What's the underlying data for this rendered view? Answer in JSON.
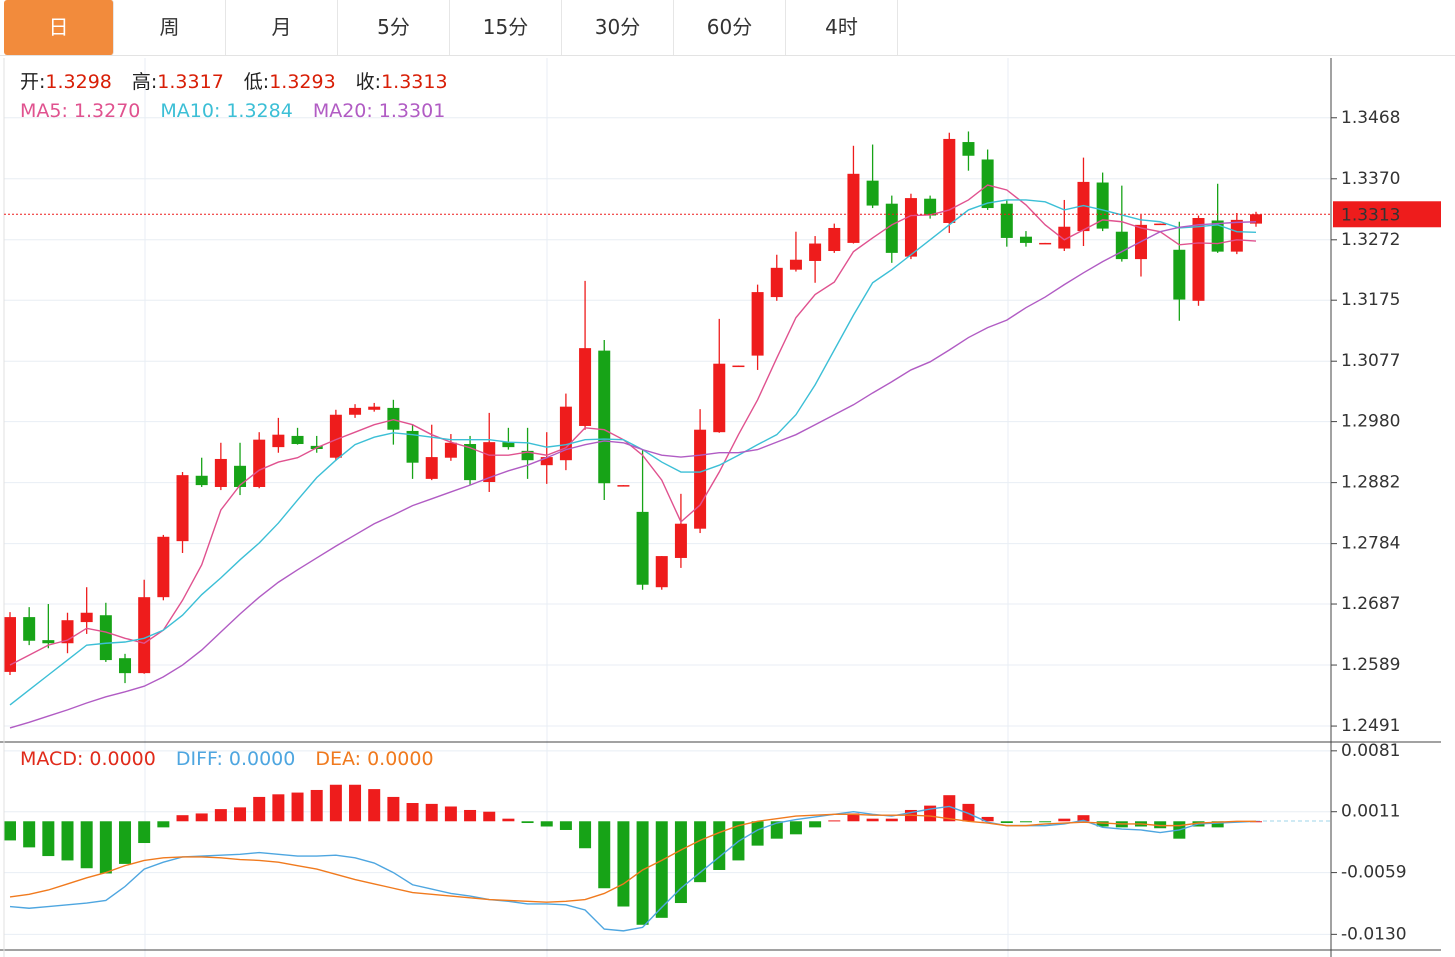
{
  "tabs": {
    "items": [
      "日",
      "周",
      "月",
      "5分",
      "15分",
      "30分",
      "60分",
      "4时"
    ],
    "active": 0,
    "active_color": "#f28b3c"
  },
  "chart_data": [
    {
      "type": "candlestick",
      "info": [
        {
          "label": "开:",
          "value": "1.3298"
        },
        {
          "label": "高:",
          "value": "1.3317"
        },
        {
          "label": "低:",
          "value": "1.3293"
        },
        {
          "label": "收:",
          "value": "1.3313"
        }
      ],
      "info_color": "#d81e06",
      "up_color": "#ee1c1c",
      "down_color": "#17a317",
      "open": [
        1.2578,
        1.2666,
        1.2629,
        1.2624,
        1.2658,
        1.2669,
        1.26,
        1.2576,
        1.2698,
        1.2788,
        1.2893,
        1.2875,
        1.2909,
        1.2875,
        1.2939,
        1.2957,
        1.2941,
        1.2922,
        1.2991,
        1.2999,
        1.3002,
        1.2965,
        1.2888,
        1.2922,
        1.2944,
        1.2883,
        1.2947,
        1.2933,
        1.291,
        1.2918,
        1.2973,
        1.3094,
        1.2877,
        1.2835,
        1.2714,
        1.2761,
        1.2808,
        1.2963,
        1.3068,
        1.3086,
        1.318,
        1.3224,
        1.3238,
        1.3254,
        1.3267,
        1.3367,
        1.333,
        1.3245,
        1.3338,
        1.3299,
        1.3429,
        1.3401,
        1.333,
        1.3277,
        1.3266,
        1.3258,
        1.3286,
        1.3364,
        1.3285,
        1.3241,
        1.3297,
        1.3256,
        1.3174,
        1.3303,
        1.3253,
        1.3298
      ],
      "high": [
        1.2674,
        1.2682,
        1.2687,
        1.2673,
        1.2714,
        1.2689,
        1.2607,
        1.2726,
        1.2798,
        1.2899,
        1.2922,
        1.2946,
        1.2946,
        1.2963,
        1.2986,
        1.297,
        1.2957,
        1.2999,
        1.3008,
        1.301,
        1.3015,
        1.2976,
        1.2975,
        1.296,
        1.2957,
        1.2994,
        1.297,
        1.297,
        1.2963,
        1.3025,
        1.3206,
        1.3111,
        1.2878,
        1.2935,
        1.2764,
        1.2864,
        1.3,
        1.3145,
        1.307,
        1.32,
        1.3248,
        1.3285,
        1.3278,
        1.3298,
        1.3423,
        1.3425,
        1.3343,
        1.3346,
        1.3343,
        1.3444,
        1.3446,
        1.3417,
        1.3335,
        1.3286,
        1.3267,
        1.3336,
        1.3404,
        1.338,
        1.3359,
        1.3312,
        1.3298,
        1.3301,
        1.3311,
        1.3362,
        1.3315,
        1.3317
      ],
      "low": [
        1.2573,
        1.2621,
        1.2616,
        1.2608,
        1.2639,
        1.2594,
        1.256,
        1.2575,
        1.2693,
        1.2769,
        1.2875,
        1.287,
        1.2862,
        1.2873,
        1.293,
        1.2943,
        1.293,
        1.2917,
        1.2986,
        1.2996,
        1.2943,
        1.2888,
        1.2886,
        1.2917,
        1.2878,
        1.2867,
        1.2935,
        1.2888,
        1.288,
        1.2902,
        1.2967,
        1.2854,
        1.2877,
        1.271,
        1.271,
        1.2745,
        1.2801,
        1.2962,
        1.3068,
        1.3063,
        1.3174,
        1.3221,
        1.3203,
        1.3251,
        1.3266,
        1.3323,
        1.3235,
        1.3241,
        1.3306,
        1.3283,
        1.3383,
        1.332,
        1.3261,
        1.3261,
        1.3266,
        1.3254,
        1.3262,
        1.3286,
        1.3237,
        1.3213,
        1.3297,
        1.3142,
        1.3166,
        1.3251,
        1.3249,
        1.3293
      ],
      "close": [
        1.2666,
        1.2628,
        1.2624,
        1.2661,
        1.2673,
        1.2597,
        1.2576,
        1.2698,
        1.2795,
        1.2894,
        1.2878,
        1.292,
        1.2875,
        1.2951,
        1.2959,
        1.2944,
        1.2936,
        1.2991,
        1.3002,
        1.3004,
        1.2967,
        1.2914,
        1.2923,
        1.2946,
        1.2886,
        1.2947,
        1.2939,
        1.2918,
        1.2923,
        1.3004,
        1.3098,
        1.2881,
        1.2878,
        1.2718,
        1.2764,
        1.2816,
        1.2967,
        1.3073,
        1.307,
        1.3188,
        1.3227,
        1.324,
        1.3266,
        1.3291,
        1.3378,
        1.3327,
        1.3251,
        1.3339,
        1.3311,
        1.3434,
        1.3407,
        1.3323,
        1.3275,
        1.3267,
        1.3267,
        1.3293,
        1.3365,
        1.329,
        1.3241,
        1.3296,
        1.3298,
        1.3176,
        1.3307,
        1.3253,
        1.3304,
        1.3313
      ],
      "series": [
        {
          "name": "MA5:",
          "value_label": "1.3270",
          "color": "#e0528f",
          "values": [
            1.2589,
            1.2605,
            1.2621,
            1.2629,
            1.2648,
            1.2642,
            1.2632,
            1.2624,
            1.2645,
            1.2693,
            1.275,
            1.2838,
            1.2878,
            1.2902,
            1.2915,
            1.2922,
            1.2938,
            1.2951,
            1.2963,
            1.2975,
            1.2983,
            1.2975,
            1.2959,
            1.2947,
            1.2938,
            1.2926,
            1.2926,
            1.2931,
            1.2926,
            1.2938,
            1.297,
            1.2967,
            1.2951,
            1.2926,
            1.2886,
            1.2819,
            1.2846,
            1.2899,
            1.2959,
            1.3015,
            1.3082,
            1.3147,
            1.3184,
            1.3204,
            1.3253,
            1.3275,
            1.3296,
            1.3311,
            1.3312,
            1.332,
            1.3336,
            1.336,
            1.3352,
            1.3328,
            1.3296,
            1.3272,
            1.3288,
            1.3304,
            1.3301,
            1.3291,
            1.3285,
            1.3264,
            1.3267,
            1.3266,
            1.3272,
            1.327
          ]
        },
        {
          "name": "MA10:",
          "value_label": "1.3284",
          "color": "#3cbfd6",
          "values": [
            1.2525,
            1.2549,
            1.2573,
            1.2597,
            1.2621,
            1.2624,
            1.2626,
            1.2632,
            1.2645,
            1.2669,
            1.2702,
            1.2729,
            1.2758,
            1.2785,
            1.2817,
            1.2854,
            1.289,
            1.2918,
            1.2943,
            1.2955,
            1.2962,
            1.2959,
            1.2955,
            1.2951,
            1.2951,
            1.2951,
            1.2947,
            1.2946,
            1.2939,
            1.2943,
            1.2951,
            1.2952,
            1.2951,
            1.2935,
            1.2915,
            1.2899,
            1.2899,
            1.291,
            1.2926,
            1.2943,
            1.2959,
            1.2991,
            1.3039,
            1.3095,
            1.3151,
            1.3203,
            1.3224,
            1.3248,
            1.3272,
            1.3296,
            1.332,
            1.3331,
            1.3336,
            1.3336,
            1.3333,
            1.332,
            1.3327,
            1.332,
            1.3312,
            1.3304,
            1.3301,
            1.3291,
            1.3293,
            1.3296,
            1.3285,
            1.3284
          ]
        },
        {
          "name": "MA20:",
          "value_label": "1.3301",
          "color": "#b15cc4",
          "values": [
            1.2488,
            1.2497,
            1.2507,
            1.2517,
            1.2528,
            1.2538,
            1.2546,
            1.2555,
            1.257,
            1.2589,
            1.2613,
            1.2642,
            1.2671,
            1.2698,
            1.2722,
            1.2742,
            1.2761,
            1.278,
            1.2798,
            1.2816,
            1.283,
            1.2845,
            1.2856,
            1.2867,
            1.2878,
            1.289,
            1.2901,
            1.291,
            1.2922,
            1.2935,
            1.2943,
            1.2949,
            1.2946,
            1.2935,
            1.2926,
            1.2923,
            1.2926,
            1.293,
            1.293,
            1.2935,
            1.2947,
            1.2959,
            1.2975,
            1.2991,
            1.3007,
            1.3026,
            1.3044,
            1.3063,
            1.3076,
            1.3095,
            1.3115,
            1.3131,
            1.3143,
            1.3163,
            1.318,
            1.32,
            1.3219,
            1.3237,
            1.3253,
            1.3269,
            1.3285,
            1.3292,
            1.3296,
            1.3298,
            1.33,
            1.3301
          ]
        }
      ],
      "ylim": [
        1.2467,
        1.3564
      ],
      "yticks": [
        1.3468,
        {
          "value": 1.337,
          "label": "1.3370"
        },
        1.3272,
        1.3175,
        1.3077,
        {
          "value": 1.298,
          "label": "1.2980"
        },
        1.2882,
        1.2784,
        1.2687,
        1.2589,
        1.2491
      ],
      "current_price": 1.3313,
      "current_price_color": "#ee1c1c",
      "grid": true
    },
    {
      "type": "macd",
      "up_color": "#ee1c1c",
      "down_color": "#17a317",
      "series": [
        {
          "name": "MACD:",
          "value_label": "0.0000",
          "color": "#e02a1a",
          "style": "histogram",
          "values": [
            -0.0022,
            -0.003,
            -0.004,
            -0.0045,
            -0.0054,
            -0.006,
            -0.0049,
            -0.0025,
            -0.0007,
            0.0007,
            0.0009,
            0.0014,
            0.0016,
            0.0028,
            0.0031,
            0.0033,
            0.0036,
            0.0042,
            0.0042,
            0.0037,
            0.0028,
            0.0021,
            0.002,
            0.0017,
            0.0013,
            0.0011,
            0.0003,
            -0.0002,
            -0.0006,
            -0.001,
            -0.0031,
            -0.0077,
            -0.0098,
            -0.0119,
            -0.0111,
            -0.0094,
            -0.007,
            -0.0056,
            -0.0045,
            -0.0028,
            -0.002,
            -0.0015,
            -0.0007,
            0.0001,
            0.0009,
            0.0003,
            0.0003,
            0.0013,
            0.0018,
            0.003,
            0.002,
            0.0005,
            -0.0002,
            -0.0001,
            -0.0001,
            0.0003,
            0.0007,
            -0.0006,
            -0.0007,
            -0.0006,
            -0.0008,
            -0.002,
            -0.0006,
            -0.0007,
            -0.0001,
            0
          ]
        },
        {
          "name": "DIFF:",
          "value_label": "0.0000",
          "color": "#4ea6e0",
          "style": "line",
          "values": [
            -0.0098,
            -0.01,
            -0.0098,
            -0.0096,
            -0.0094,
            -0.0091,
            -0.0075,
            -0.0055,
            -0.0047,
            -0.0041,
            -0.004,
            -0.0039,
            -0.0038,
            -0.0036,
            -0.0038,
            -0.004,
            -0.004,
            -0.0039,
            -0.0042,
            -0.0048,
            -0.0059,
            -0.0073,
            -0.0078,
            -0.0083,
            -0.0086,
            -0.009,
            -0.0092,
            -0.0095,
            -0.0095,
            -0.0096,
            -0.0102,
            -0.0124,
            -0.0126,
            -0.0122,
            -0.0099,
            -0.0077,
            -0.0059,
            -0.0041,
            -0.0023,
            -0.001,
            -0.0002,
            0.0002,
            0.0005,
            0.0008,
            0.0011,
            0.0008,
            0.0006,
            0.001,
            0.0014,
            0.0017,
            0.0009,
            -0.0001,
            -0.0005,
            -0.0005,
            -0.0005,
            -0.0003,
            0.0001,
            -0.0007,
            -0.0009,
            -0.001,
            -0.0013,
            -0.001,
            -0.0003,
            -0.0002,
            -0.0001,
            0
          ]
        },
        {
          "name": "DEA:",
          "value_label": "0.0000",
          "color": "#f07a1e",
          "style": "line",
          "values": [
            -0.0087,
            -0.0084,
            -0.0079,
            -0.0072,
            -0.0065,
            -0.0059,
            -0.0051,
            -0.0045,
            -0.0042,
            -0.0041,
            -0.0041,
            -0.0042,
            -0.0044,
            -0.0045,
            -0.0047,
            -0.0051,
            -0.0055,
            -0.0061,
            -0.0067,
            -0.0072,
            -0.0077,
            -0.0082,
            -0.0084,
            -0.0086,
            -0.0088,
            -0.009,
            -0.0091,
            -0.0092,
            -0.0093,
            -0.0092,
            -0.009,
            -0.0083,
            -0.0072,
            -0.0056,
            -0.0045,
            -0.0033,
            -0.0022,
            -0.0013,
            -0.0005,
            0,
            0.0003,
            0.0006,
            0.0007,
            0.0008,
            0.0008,
            0.0007,
            0.0007,
            0.0007,
            0.0006,
            0.0003,
            0,
            -0.0002,
            -0.0005,
            -0.0005,
            -0.0003,
            -0.0002,
            -0.0001,
            -0.0002,
            -0.0003,
            -0.0003,
            -0.0005,
            -0.0005,
            -0.0002,
            -0.0001,
            0,
            0
          ]
        }
      ],
      "ylim": [
        -0.0148,
        0.009
      ],
      "yticks": [
        0.0081,
        0.0011,
        -0.0059,
        {
          "value": -0.013,
          "label": "-0.0130"
        }
      ],
      "grid": true
    }
  ]
}
